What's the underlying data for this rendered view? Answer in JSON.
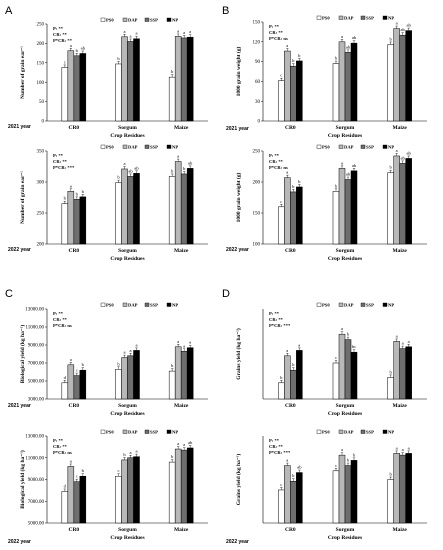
{
  "legend_labels": [
    "PS0",
    "DAP",
    "SSP",
    "NP"
  ],
  "series_colors": [
    "#ffffff",
    "#b8b8b8",
    "#6e6e6e",
    "#000000"
  ],
  "x_axis_label": "Crop Residues",
  "categories": [
    "CR0",
    "Sorgum",
    "Maize"
  ],
  "panel_letters": [
    "A",
    "B",
    "C",
    "D"
  ],
  "chart_data": [
    {
      "type": "bar",
      "panel": "A",
      "year_label": "2021 year",
      "ylabel": "Number of grain ear⁻¹",
      "ylim": [
        0,
        250
      ],
      "yticks": [
        "0",
        "50",
        "100",
        "150",
        "200",
        "250"
      ],
      "stats": [
        "P: **",
        "CR: **",
        "P*CR: **"
      ],
      "categories": [
        "CR0",
        "Sorgum",
        "Maize"
      ],
      "series": [
        {
          "name": "PS0",
          "values": [
            138,
            147,
            113
          ]
        },
        {
          "name": "DAP",
          "values": [
            181,
            217,
            218
          ]
        },
        {
          "name": "SSP",
          "values": [
            168,
            205,
            214
          ]
        },
        {
          "name": "NP",
          "values": [
            174,
            212,
            216
          ]
        }
      ],
      "letters": [
        [
          "c",
          "a",
          "b",
          "ab"
        ],
        [
          "b",
          "a",
          "a",
          "a"
        ],
        [
          "b",
          "a",
          "a",
          "a"
        ]
      ]
    },
    {
      "type": "bar",
      "panel": "A",
      "year_label": "2022 year",
      "ylabel": "Number of grain ear⁻¹",
      "ylim": [
        200,
        350
      ],
      "yticks": [
        "200",
        "250",
        "300",
        "350"
      ],
      "stats": [
        "P: **",
        "CR: **",
        "P*CR: ***"
      ],
      "categories": [
        "CR0",
        "Sorgum",
        "Maize"
      ],
      "series": [
        {
          "name": "PS0",
          "values": [
            265,
            299,
            309
          ]
        },
        {
          "name": "DAP",
          "values": [
            285,
            321,
            333
          ]
        },
        {
          "name": "SSP",
          "values": [
            272,
            309,
            313
          ]
        },
        {
          "name": "NP",
          "values": [
            276,
            314,
            322
          ]
        }
      ],
      "letters": [
        [
          "b",
          "a",
          "b",
          "b"
        ],
        [
          "b",
          "a",
          "ab",
          "ab"
        ],
        [
          "b",
          "a",
          "b",
          "ab"
        ]
      ]
    },
    {
      "type": "bar",
      "panel": "B",
      "year_label": "2021 year",
      "ylabel": "1000 grain weight (g)",
      "ylim": [
        0,
        150
      ],
      "yticks": [
        "0",
        "30",
        "60",
        "90",
        "120",
        "150"
      ],
      "stats": [
        "P: **",
        "CR: **",
        "P*CR: ns"
      ],
      "categories": [
        "CR0",
        "Sorgum",
        "Maize"
      ],
      "series": [
        {
          "name": "PS0",
          "values": [
            61,
            87,
            116
          ]
        },
        {
          "name": "DAP",
          "values": [
            106,
            120,
            140
          ]
        },
        {
          "name": "SSP",
          "values": [
            83,
            104,
            130
          ]
        },
        {
          "name": "NP",
          "values": [
            91,
            118,
            137
          ]
        }
      ],
      "letters": [
        [
          "c",
          "a",
          "b",
          "b"
        ],
        [
          "b",
          "a",
          "ab",
          "ab"
        ],
        [
          "b",
          "a",
          "ab",
          "ab"
        ]
      ]
    },
    {
      "type": "bar",
      "panel": "B",
      "year_label": "2022 year",
      "ylabel": "1000 grain weight (g)",
      "ylim": [
        100,
        250
      ],
      "yticks": [
        "100",
        "150",
        "200",
        "250"
      ],
      "stats": [
        "P: **",
        "CR: **",
        "P*CR: ns"
      ],
      "categories": [
        "CR0",
        "Sorgum",
        "Maize"
      ],
      "series": [
        {
          "name": "PS0",
          "values": [
            160,
            185,
            215
          ]
        },
        {
          "name": "DAP",
          "values": [
            207,
            222,
            242
          ]
        },
        {
          "name": "SSP",
          "values": [
            184,
            204,
            230
          ]
        },
        {
          "name": "NP",
          "values": [
            192,
            218,
            238
          ]
        }
      ],
      "letters": [
        [
          "c",
          "a",
          "b",
          "b"
        ],
        [
          "b",
          "a",
          "ab",
          "ab"
        ],
        [
          "b",
          "a",
          "ab",
          "ab"
        ]
      ]
    },
    {
      "type": "bar",
      "panel": "C",
      "year_label": "2021 year",
      "ylabel": "Biological yield (kg ha⁻¹)",
      "ylim": [
        3000,
        13000
      ],
      "yticks": [
        "3000.00",
        "5000.00",
        "7000.00",
        "9000.00",
        "11000.00",
        "13000.00"
      ],
      "stats": [
        "P: **",
        "CR: **",
        "P*CR: ns"
      ],
      "categories": [
        "CR0",
        "Sorgum",
        "Maize"
      ],
      "series": [
        {
          "name": "PS0",
          "values": [
            4800,
            6300,
            6100
          ]
        },
        {
          "name": "DAP",
          "values": [
            6800,
            7600,
            8800
          ]
        },
        {
          "name": "SSP",
          "values": [
            5600,
            7800,
            8300
          ]
        },
        {
          "name": "NP",
          "values": [
            6200,
            8400,
            8700
          ]
        }
      ],
      "letters": [
        [
          "d",
          "a",
          "c",
          "b"
        ],
        [
          "b",
          "a",
          "a",
          "a"
        ],
        [
          "b",
          "a",
          "a",
          "a"
        ]
      ]
    },
    {
      "type": "bar",
      "panel": "C",
      "year_label": "2022 year",
      "ylabel": "Biological yield (kg ha⁻¹)",
      "ylim": [
        5000,
        13000
      ],
      "yticks": [
        "5000.00",
        "7000.00",
        "9000.00",
        "11000.00",
        "13000.00"
      ],
      "stats": [
        "P: **",
        "CR: **",
        "P*CR: ns"
      ],
      "categories": [
        "CR0",
        "Sorgum",
        "Maize"
      ],
      "series": [
        {
          "name": "PS0",
          "values": [
            7900,
            9300,
            10600
          ]
        },
        {
          "name": "DAP",
          "values": [
            10200,
            10800,
            11800
          ]
        },
        {
          "name": "SSP",
          "values": [
            8800,
            11000,
            11700
          ]
        },
        {
          "name": "NP",
          "values": [
            9300,
            11100,
            11900
          ]
        }
      ],
      "letters": [
        [
          "d",
          "a",
          "c",
          "b"
        ],
        [
          "c",
          "b",
          "a",
          "a"
        ],
        [
          "b",
          "a",
          "a",
          "ab"
        ]
      ]
    },
    {
      "type": "bar",
      "panel": "D",
      "year_label": "",
      "ylabel": "Grains yield (kg ha⁻¹)",
      "ylim": [
        0,
        5000
      ],
      "yticks": [],
      "stats": [
        "P: **",
        "CR: **",
        "P*CR: ***"
      ],
      "categories": [
        "CR0",
        "Sorgum",
        "Maize"
      ],
      "series": [
        {
          "name": "PS0",
          "values": [
            900,
            2000,
            1200
          ]
        },
        {
          "name": "DAP",
          "values": [
            2400,
            3600,
            3200
          ]
        },
        {
          "name": "SSP",
          "values": [
            1600,
            3300,
            2800
          ]
        },
        {
          "name": "NP",
          "values": [
            2700,
            2600,
            2900
          ]
        }
      ],
      "letters": [
        [
          "b",
          "a",
          "b",
          "a"
        ],
        [
          "c",
          "a",
          "b",
          "bc"
        ],
        [
          "b",
          "a",
          "a",
          "a"
        ]
      ]
    },
    {
      "type": "bar",
      "panel": "D",
      "year_label": "2022 year",
      "ylabel": "Grains yield (kg ha⁻¹)",
      "ylim": [
        0,
        5000
      ],
      "yticks": [],
      "stats": [
        "P: **",
        "CR: **",
        "P*CR: ***"
      ],
      "categories": [
        "CR0",
        "Sorgum",
        "Maize"
      ],
      "series": [
        {
          "name": "PS0",
          "values": [
            1900,
            3000,
            2500
          ]
        },
        {
          "name": "DAP",
          "values": [
            3300,
            3900,
            4000
          ]
        },
        {
          "name": "SSP",
          "values": [
            2400,
            3300,
            3900
          ]
        },
        {
          "name": "NP",
          "values": [
            2900,
            3600,
            4000
          ]
        }
      ],
      "letters": [
        [
          "c",
          "a",
          "b",
          "ab"
        ],
        [
          "c",
          "a",
          "b",
          "b"
        ],
        [
          "b",
          "a",
          "a",
          "a"
        ]
      ]
    }
  ]
}
